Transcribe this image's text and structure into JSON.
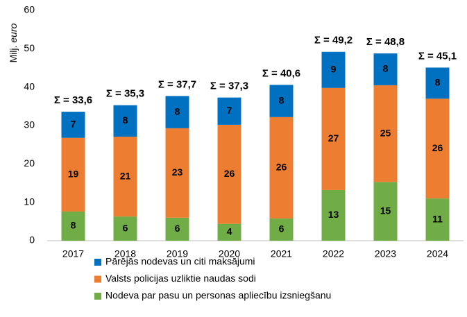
{
  "chart_data": {
    "type": "stacked_bar",
    "ylabel": [
      "Milj.",
      "euro"
    ],
    "categories": [
      "2017",
      "2018",
      "2019",
      "2020",
      "2021",
      "2022",
      "2023",
      "2024"
    ],
    "series": [
      {
        "name": "Nodeva par pasu un personas apliecību izsniegšanu",
        "color": "#70ad47",
        "values": [
          7.6,
          6.3,
          6.0,
          4.4,
          5.8,
          13.2,
          15.3,
          11.0
        ],
        "value_labels": [
          "8",
          "6",
          "6",
          "4",
          "6",
          "13",
          "15",
          "11"
        ]
      },
      {
        "name": "Valsts policijas uzliktie naudas sodi",
        "color": "#ed7d31",
        "values": [
          19.2,
          20.8,
          23.3,
          25.8,
          26.4,
          26.6,
          25.2,
          26.0
        ],
        "value_labels": [
          "19",
          "21",
          "23",
          "26",
          "26",
          "27",
          "25",
          "26"
        ]
      },
      {
        "name": "Pārējās nodevas un citi maksājumi",
        "color": "#0070c0",
        "values": [
          6.8,
          8.2,
          8.4,
          7.1,
          8.4,
          9.4,
          8.3,
          8.1
        ],
        "value_labels": [
          "7",
          "8",
          "8",
          "7",
          "8",
          "9",
          "8",
          "8"
        ]
      }
    ],
    "totals": [
      33.6,
      35.3,
      37.7,
      37.3,
      40.6,
      49.2,
      48.8,
      45.1
    ],
    "total_labels": [
      "Σ = 33,6",
      "Σ = 35,3",
      "Σ = 37,7",
      "Σ = 37,3",
      "Σ = 40,6",
      "Σ = 49,2",
      "Σ = 48,8",
      "Σ = 45,1"
    ],
    "ylim": [
      0,
      60
    ],
    "yticks": [
      0,
      10,
      20,
      30,
      40,
      50,
      60
    ],
    "grid": false
  }
}
